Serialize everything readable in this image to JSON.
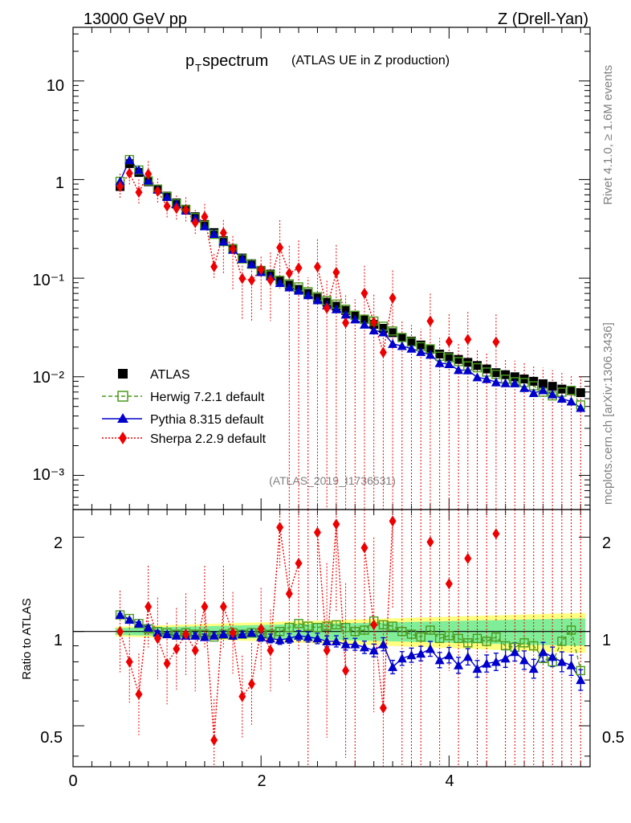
{
  "header": {
    "energy": "13000 GeV pp",
    "process": "Z (Drell-Yan)",
    "title_main": "p",
    "title_sub": "T",
    "title_word": " spectrum",
    "title_small": "(ATLAS UE in Z production)",
    "analysis_id": "(ATLAS_2019_I1736531)",
    "side_rivet": "Rivet 4.1.0, ≥ 1.6M events",
    "side_mcplots": "mcplots.cern.ch [arXiv:1306.3436]"
  },
  "ratio_panel": {
    "ylabel": "Ratio to ATLAS",
    "ticks": [
      "0.5",
      "1",
      "2"
    ]
  },
  "main_panel": {
    "yticks": [
      "10⁻³",
      "10⁻²",
      "10⁻¹",
      "1",
      "10"
    ],
    "xticks": [
      "0",
      "2",
      "4"
    ]
  },
  "legend": [
    {
      "label": "ATLAS",
      "color": "#000000"
    },
    {
      "label": "Herwig 7.2.1 default",
      "color": "#4c9a1c"
    },
    {
      "label": "Pythia 8.315 default",
      "color": "#0000cc"
    },
    {
      "label": "Sherpa 2.2.9 default",
      "color": "#ee0000"
    }
  ],
  "chart_data": {
    "type": "scatter",
    "xlim": [
      0,
      5.5
    ],
    "ylim": [
      0.00045,
      35
    ],
    "yscale": "log",
    "ratio_ylim": [
      0.37,
      2.45
    ],
    "x": [
      0.5,
      0.6,
      0.7,
      0.8,
      0.9,
      1.0,
      1.1,
      1.2,
      1.3,
      1.4,
      1.5,
      1.6,
      1.7,
      1.8,
      1.9,
      2.0,
      2.1,
      2.2,
      2.3,
      2.4,
      2.5,
      2.6,
      2.7,
      2.8,
      2.9,
      3.0,
      3.1,
      3.2,
      3.3,
      3.4,
      3.5,
      3.6,
      3.7,
      3.8,
      3.9,
      4.0,
      4.1,
      4.2,
      4.3,
      4.4,
      4.5,
      4.6,
      4.7,
      4.8,
      4.9,
      5.0,
      5.1,
      5.2,
      5.3,
      5.4
    ],
    "series": [
      {
        "name": "ATLAS",
        "values": [
          0.85,
          1.45,
          1.18,
          0.95,
          0.8,
          0.68,
          0.58,
          0.5,
          0.42,
          0.35,
          0.29,
          0.24,
          0.2,
          0.16,
          0.14,
          0.12,
          0.11,
          0.095,
          0.085,
          0.077,
          0.07,
          0.063,
          0.057,
          0.052,
          0.047,
          0.042,
          0.038,
          0.034,
          0.031,
          0.028,
          0.025,
          0.023,
          0.021,
          0.019,
          0.017,
          0.016,
          0.015,
          0.014,
          0.013,
          0.012,
          0.011,
          0.0105,
          0.01,
          0.0095,
          0.009,
          0.0085,
          0.008,
          0.0075,
          0.0072,
          0.0069
        ]
      },
      {
        "name": "Herwig 7.2.1 default",
        "ratio": [
          1.13,
          1.1,
          1.06,
          1.02,
          1.0,
          0.99,
          0.98,
          0.99,
          0.98,
          0.98,
          0.96,
          0.98,
          0.99,
          0.98,
          0.99,
          0.99,
          0.98,
          1.0,
          1.03,
          1.06,
          1.04,
          1.03,
          1.04,
          1.05,
          1.03,
          1.0,
          1.01,
          1.08,
          1.05,
          1.04,
          1.0,
          0.98,
          0.96,
          1.01,
          0.95,
          0.97,
          0.95,
          0.92,
          0.95,
          0.93,
          0.96,
          0.9,
          0.89,
          0.92,
          0.9,
          0.82,
          0.8,
          0.93,
          1.01,
          0.75
        ]
      },
      {
        "name": "Pythia 8.315 default",
        "ratio": [
          1.13,
          1.09,
          1.06,
          1.03,
          0.99,
          0.98,
          0.97,
          0.97,
          0.97,
          0.96,
          0.97,
          0.98,
          0.97,
          0.98,
          0.99,
          0.96,
          0.95,
          0.94,
          0.95,
          0.97,
          0.96,
          0.95,
          0.93,
          0.93,
          0.91,
          0.91,
          0.89,
          0.87,
          0.91,
          0.77,
          0.82,
          0.84,
          0.85,
          0.88,
          0.81,
          0.84,
          0.78,
          0.83,
          0.76,
          0.79,
          0.8,
          0.82,
          0.86,
          0.81,
          0.76,
          0.86,
          0.83,
          0.8,
          0.78,
          0.7
        ]
      },
      {
        "name": "Sherpa 2.2.9 default",
        "ratio": [
          1.0,
          0.8,
          0.63,
          1.2,
          0.95,
          0.79,
          0.88,
          0.98,
          0.87,
          1.2,
          0.45,
          1.2,
          0.99,
          0.62,
          0.68,
          1.02,
          0.87,
          2.15,
          1.32,
          1.65,
          null,
          2.07,
          0.87,
          2.2,
          0.75,
          null,
          1.85,
          1.05,
          0.57,
          2.25,
          null,
          null,
          null,
          1.93,
          null,
          1.42,
          null,
          1.71,
          null,
          null,
          2.05,
          null,
          null,
          null,
          null,
          null,
          null,
          null,
          null,
          null
        ]
      }
    ]
  }
}
